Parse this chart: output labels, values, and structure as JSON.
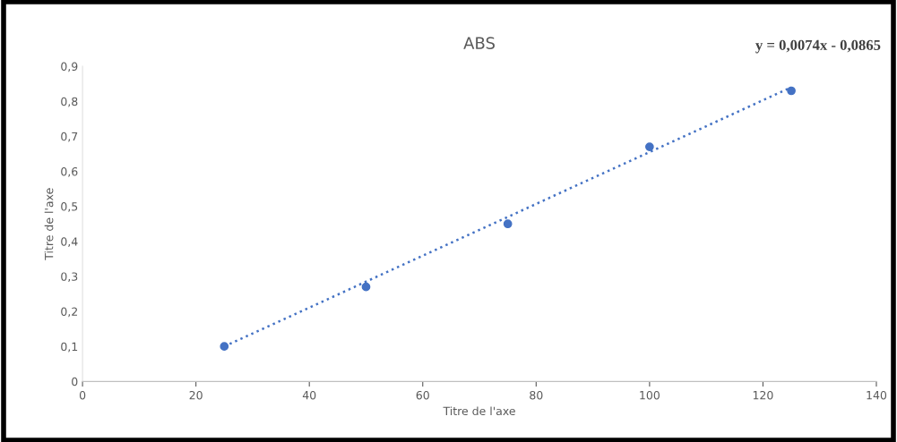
{
  "chart_data": {
    "type": "scatter",
    "title": "ABS",
    "xlabel": "Titre de l'axe",
    "ylabel": "Titre de l'axe",
    "series": [
      {
        "color": "#4472c4",
        "x": [
          25,
          50,
          75,
          100,
          125
        ],
        "values": [
          0.1,
          0.27,
          0.45,
          0.67,
          0.83
        ],
        "marker": "circle"
      },
      {
        "type": "line",
        "color": "#4472c4",
        "x": [
          25,
          125
        ],
        "values": [
          0.1,
          0.84
        ],
        "line_style": "dotted",
        "marker": "none"
      }
    ],
    "annotations": [
      "y = 0,0074x - 0,0865"
    ],
    "xlim": [
      0,
      140
    ],
    "xticks": [
      0,
      20,
      40,
      60,
      80,
      100,
      120,
      140
    ],
    "ylim": [
      0,
      0.9
    ],
    "yticks": [
      0,
      {
        "value": 0.1,
        "label": "0,1"
      },
      {
        "value": 0.2,
        "label": "0,2"
      },
      {
        "value": 0.3,
        "label": "0,3"
      },
      {
        "value": 0.4,
        "label": "0,4"
      },
      {
        "value": 0.5,
        "label": "0,5"
      },
      {
        "value": 0.6,
        "label": "0,6"
      },
      {
        "value": 0.7,
        "label": "0,7"
      },
      {
        "value": 0.8,
        "label": "0,8"
      },
      {
        "value": 0.9,
        "label": "0,9"
      }
    ],
    "grid": false,
    "legend": false
  }
}
